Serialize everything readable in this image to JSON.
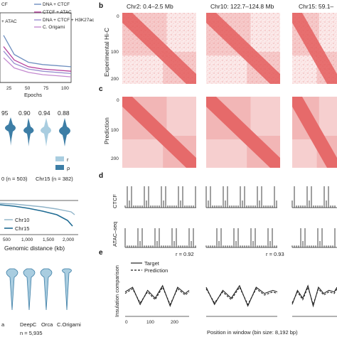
{
  "panel_letters": [
    "b",
    "c",
    "d",
    "e"
  ],
  "left_top": {
    "legend": [
      "DNA + CTCF",
      "CTCF + ATAC",
      "DNA + CTCF + H3K27ac",
      "C. Origami"
    ],
    "legend_partial": [
      "CF",
      "+ ATAC"
    ],
    "legend_colors": [
      "#6f8fc0",
      "#b33a9a",
      "#9a8fd0",
      "#c48ad0"
    ],
    "xlabel": "Epochs",
    "xticks": [
      "25",
      "50",
      "75",
      "100"
    ]
  },
  "left_violin": {
    "values_top": [
      "95",
      "0.90",
      "0.94",
      "0.88"
    ],
    "legend": [
      "r",
      "ρ"
    ],
    "legend_colors": [
      "#a9cde0",
      "#3d7ea6"
    ],
    "labels": [
      "0 (n = 503)",
      "Chr15 (n = 382)"
    ]
  },
  "left_decay": {
    "legend": [
      "Chr10",
      "Chr15"
    ],
    "xlabel": "Genomic distance (kb)",
    "xticks": [
      "500",
      "1,000",
      "1,500",
      "2,000"
    ]
  },
  "left_bottom": {
    "labels": [
      "a",
      "DeepC",
      "Orca",
      "C.Origami"
    ],
    "n_label": "n = 5,935"
  },
  "hic": {
    "titles": [
      "Chr2: 0.4–2.5 Mb",
      "Chr10: 122.7–124.8 Mb",
      "Chr15: 59.1–"
    ],
    "yticks": [
      "0",
      "100",
      "200"
    ],
    "ylabel_exp": "Experimental Hi-C",
    "ylabel_pred": "Prediction"
  },
  "tracks": {
    "labels": [
      "CTCF",
      "ATAC–seq"
    ]
  },
  "insulation": {
    "r_values": [
      "r = 0.92",
      "r = 0.93"
    ],
    "legend": [
      "Target",
      "Prediction"
    ],
    "ylabel": "Insulation comparison",
    "xlabel": "Position in window (bin size: 8,192 bp)",
    "xticks": [
      "0",
      "100",
      "200"
    ]
  },
  "chart_data": [
    {
      "type": "line",
      "title": "",
      "xlabel": "Epochs",
      "ylabel": "",
      "xlim": [
        0,
        100
      ],
      "series": [
        {
          "name": "DNA + CTCF",
          "x": [
            5,
            20,
            40,
            60,
            80,
            100
          ],
          "values": [
            0.72,
            0.55,
            0.48,
            0.46,
            0.45,
            0.44
          ]
        },
        {
          "name": "CTCF + ATAC",
          "x": [
            5,
            20,
            40,
            60,
            80,
            100
          ],
          "values": [
            0.62,
            0.5,
            0.44,
            0.42,
            0.41,
            0.4
          ]
        },
        {
          "name": "DNA + CTCF + H3K27ac",
          "x": [
            5,
            20,
            40,
            60,
            80,
            100
          ],
          "values": [
            0.58,
            0.47,
            0.42,
            0.4,
            0.39,
            0.38
          ]
        },
        {
          "name": "C. Origami",
          "x": [
            5,
            20,
            40,
            60,
            80,
            100
          ],
          "values": [
            0.52,
            0.43,
            0.39,
            0.37,
            0.36,
            0.35
          ]
        }
      ]
    },
    {
      "type": "line",
      "title": "",
      "xlabel": "Position in window (bin size: 8,192 bp)",
      "ylabel": "Insulation comparison",
      "xlim": [
        0,
        256
      ],
      "series": [
        {
          "name": "Target",
          "x": [
            0,
            30,
            60,
            90,
            120,
            150,
            180,
            210,
            240,
            256
          ],
          "values": [
            0.2,
            0.5,
            -0.6,
            0.3,
            -0.2,
            0.6,
            -0.7,
            0.5,
            0.1,
            0.3
          ]
        },
        {
          "name": "Prediction",
          "x": [
            0,
            30,
            60,
            90,
            120,
            150,
            180,
            210,
            240,
            256
          ],
          "values": [
            0.1,
            0.4,
            -0.5,
            0.2,
            -0.3,
            0.5,
            -0.6,
            0.4,
            0.0,
            0.2
          ]
        }
      ]
    }
  ]
}
